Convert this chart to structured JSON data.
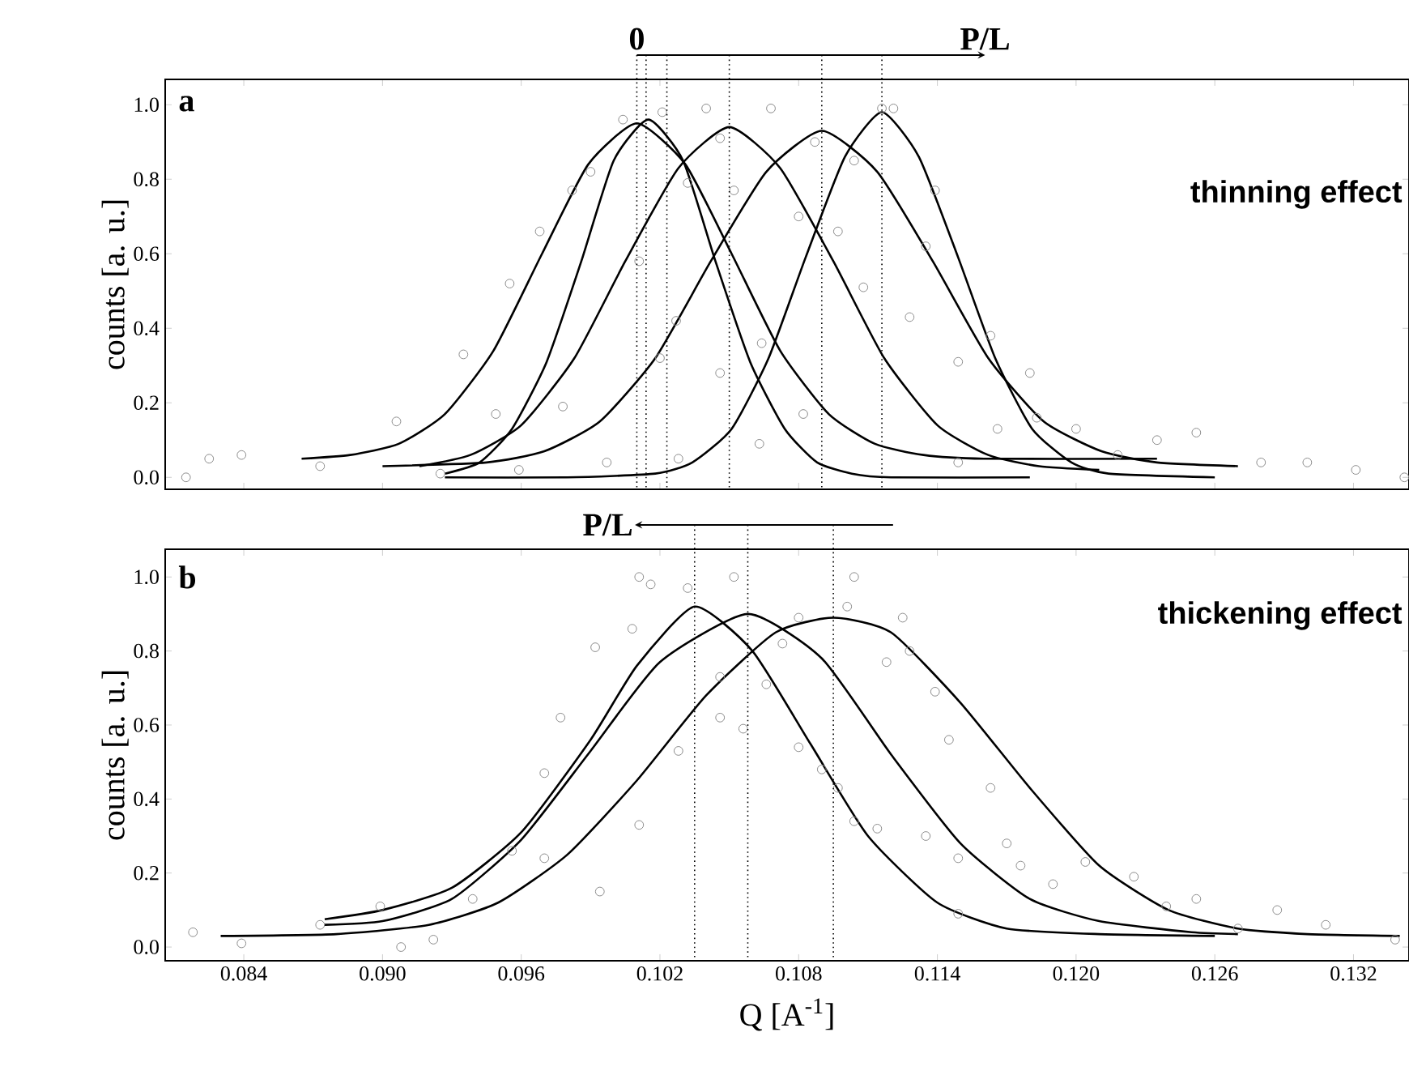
{
  "chart_data": [
    {
      "type": "scatter",
      "ylabel": "counts [a. u.]",
      "xlim": [
        0.0806,
        0.1344
      ],
      "ylim": [
        -0.032,
        1.068
      ],
      "tick_labels": "y",
      "xticks": [
        {
          "value": 0.084,
          "label": null
        },
        {
          "value": 0.09,
          "label": null
        },
        {
          "value": 0.096,
          "label": null
        },
        {
          "value": 0.102,
          "label": null
        },
        {
          "value": 0.108,
          "label": null
        },
        {
          "value": 0.114,
          "label": null
        },
        {
          "value": 0.12,
          "label": null
        },
        {
          "value": 0.126,
          "label": null
        },
        {
          "value": 0.132,
          "label": null
        }
      ],
      "yticks": [
        {
          "value": 0,
          "label": "0.0"
        },
        {
          "value": 0.2,
          "label": "0.2"
        },
        {
          "value": 0.4,
          "label": "0.4"
        },
        {
          "value": 0.6,
          "label": "0.6"
        },
        {
          "value": 0.8,
          "label": "0.8"
        },
        {
          "value": 1,
          "label": "1.0"
        }
      ],
      "annotations": [
        "a",
        "thinning effect",
        "0",
        "P/L"
      ],
      "ref_lines": [
        {
          "axis": "x",
          "value": 0.101,
          "line_style": "dotted"
        },
        {
          "axis": "x",
          "value": 0.1014,
          "line_style": "dotted"
        },
        {
          "axis": "x",
          "value": 0.1023,
          "line_style": "dotted"
        },
        {
          "axis": "x",
          "value": 0.105,
          "line_style": "dotted"
        },
        {
          "axis": "x",
          "value": 0.109,
          "line_style": "dotted"
        },
        {
          "axis": "x",
          "value": 0.1116,
          "line_style": "dotted"
        }
      ],
      "series": [
        {
          "marker": "circle",
          "color": "#8c8c8c",
          "x": [
            0.0815,
            0.0825,
            0.0839,
            0.0873,
            0.0906,
            0.0925,
            0.0935,
            0.0949,
            0.0955,
            0.0959,
            0.0968,
            0.0978,
            0.0982,
            0.099,
            0.0997,
            0.1004,
            0.1011,
            0.102,
            0.1021,
            0.1027,
            0.1028,
            0.1032,
            0.104,
            0.1046,
            0.1046,
            0.1052,
            0.1063,
            0.1064,
            0.1068,
            0.108,
            0.1082,
            0.1087,
            0.1097,
            0.1104,
            0.1108,
            0.1116,
            0.1121,
            0.1128,
            0.1135,
            0.1139,
            0.1149,
            0.1149,
            0.1163,
            0.1166,
            0.118,
            0.1183,
            0.12,
            0.1218,
            0.1235,
            0.1252,
            0.128,
            0.13,
            0.1321,
            0.1342
          ],
          "values": [
            0.0,
            0.05,
            0.06,
            0.03,
            0.15,
            0.01,
            0.33,
            0.17,
            0.52,
            0.02,
            0.66,
            0.19,
            0.77,
            0.82,
            0.04,
            0.96,
            0.58,
            0.32,
            0.98,
            0.42,
            0.05,
            0.79,
            0.99,
            0.91,
            0.28,
            0.77,
            0.09,
            0.36,
            0.99,
            0.7,
            0.17,
            0.9,
            0.66,
            0.85,
            0.51,
            0.99,
            0.99,
            0.43,
            0.62,
            0.77,
            0.31,
            0.04,
            0.38,
            0.13,
            0.28,
            0.16,
            0.13,
            0.06,
            0.1,
            0.12,
            0.04,
            0.04,
            0.02,
            0.0
          ]
        },
        {
          "type": "line",
          "color": "#000000",
          "x": [
            0.0865,
            0.0886,
            0.0907,
            0.0927,
            0.0948,
            0.0969,
            0.0989,
            0.101,
            0.1031,
            0.1051,
            0.1072,
            0.1093,
            0.1113,
            0.1134,
            0.116,
            0.1235
          ],
          "values": [
            0.05,
            0.06,
            0.09,
            0.17,
            0.34,
            0.6,
            0.84,
            0.95,
            0.84,
            0.6,
            0.34,
            0.17,
            0.09,
            0.06,
            0.05,
            0.05
          ]
        },
        {
          "type": "line",
          "color": "#000000",
          "x": [
            0.0927,
            0.0942,
            0.0956,
            0.0971,
            0.0986,
            0.1,
            0.1015,
            0.103,
            0.1044,
            0.1059,
            0.1074,
            0.1088,
            0.1103,
            0.112,
            0.118
          ],
          "values": [
            0.01,
            0.04,
            0.13,
            0.31,
            0.58,
            0.85,
            0.96,
            0.85,
            0.58,
            0.31,
            0.13,
            0.04,
            0.01,
            0.0,
            0.0
          ]
        },
        {
          "type": "line",
          "color": "#000000",
          "x": [
            0.0916,
            0.0938,
            0.096,
            0.0983,
            0.1005,
            0.1028,
            0.105,
            0.1072,
            0.1095,
            0.1117,
            0.114,
            0.1162,
            0.1184,
            0.121
          ],
          "values": [
            0.03,
            0.06,
            0.14,
            0.32,
            0.58,
            0.83,
            0.94,
            0.83,
            0.58,
            0.32,
            0.14,
            0.06,
            0.03,
            0.02
          ]
        },
        {
          "type": "line",
          "color": "#000000",
          "x": [
            0.09,
            0.0945,
            0.097,
            0.0994,
            0.1018,
            0.1042,
            0.1066,
            0.109,
            0.1114,
            0.1138,
            0.1162,
            0.1186,
            0.1211,
            0.1235,
            0.127
          ],
          "values": [
            0.03,
            0.04,
            0.07,
            0.15,
            0.32,
            0.58,
            0.82,
            0.93,
            0.82,
            0.58,
            0.32,
            0.15,
            0.07,
            0.04,
            0.03
          ]
        },
        {
          "type": "line",
          "color": "#000000",
          "x": [
            0.0927,
            0.098,
            0.1018,
            0.1034,
            0.1051,
            0.1067,
            0.1083,
            0.11,
            0.1116,
            0.1132,
            0.1149,
            0.1165,
            0.1181,
            0.1198,
            0.1214,
            0.126
          ],
          "values": [
            0.0,
            0.0,
            0.01,
            0.04,
            0.13,
            0.32,
            0.59,
            0.86,
            0.98,
            0.86,
            0.59,
            0.32,
            0.13,
            0.04,
            0.01,
            0.0
          ]
        }
      ]
    },
    {
      "type": "scatter",
      "ylabel": "counts [a. u.]",
      "xlabel": "Q [A$^{-1}$]",
      "xlim": [
        0.0806,
        0.1344
      ],
      "ylim": [
        -0.037,
        1.075
      ],
      "xticks": [
        0.084,
        {
          "value": 0.09,
          "label": "0.090"
        },
        0.096,
        {
          "value": 0.102,
          "label": "0.102"
        },
        0.108,
        0.114,
        {
          "value": 0.12,
          "label": "0.120"
        },
        0.126,
        0.132
      ],
      "yticks": [
        {
          "value": 0,
          "label": "0.0"
        },
        {
          "value": 0.2,
          "label": "0.2"
        },
        {
          "value": 0.4,
          "label": "0.4"
        },
        {
          "value": 0.6,
          "label": "0.6"
        },
        {
          "value": 0.8,
          "label": "0.8"
        },
        {
          "value": 1,
          "label": "1.0"
        }
      ],
      "annotations": [
        "b",
        "thickening effect",
        "P/L"
      ],
      "ref_lines": [
        {
          "axis": "x",
          "value": 0.1035,
          "line_style": "dotted"
        },
        {
          "axis": "x",
          "value": 0.1058,
          "line_style": "dotted"
        },
        {
          "axis": "x",
          "value": 0.1095,
          "line_style": "dotted"
        }
      ],
      "series": [
        {
          "marker": "circle",
          "color": "#8c8c8c",
          "x": [
            0.0818,
            0.0839,
            0.0873,
            0.0899,
            0.0908,
            0.0922,
            0.0939,
            0.0956,
            0.097,
            0.097,
            0.0977,
            0.0992,
            0.0994,
            0.1008,
            0.1011,
            0.1011,
            0.1016,
            0.1028,
            0.1032,
            0.1046,
            0.1046,
            0.1052,
            0.1056,
            0.1066,
            0.1073,
            0.108,
            0.108,
            0.109,
            0.1097,
            0.1101,
            0.1104,
            0.1104,
            0.1114,
            0.1118,
            0.1125,
            0.1128,
            0.1135,
            0.1139,
            0.1145,
            0.1149,
            0.1149,
            0.1163,
            0.117,
            0.1176,
            0.119,
            0.1204,
            0.1225,
            0.1239,
            0.1252,
            0.127,
            0.1287,
            0.1308,
            0.1338
          ],
          "values": [
            0.04,
            0.01,
            0.06,
            0.11,
            0.0,
            0.02,
            0.13,
            0.26,
            0.47,
            0.24,
            0.62,
            0.81,
            0.15,
            0.86,
            1.0,
            0.33,
            0.98,
            0.53,
            0.97,
            0.62,
            0.73,
            1.0,
            0.59,
            0.71,
            0.82,
            0.89,
            0.54,
            0.48,
            0.43,
            0.92,
            1.0,
            0.34,
            0.32,
            0.77,
            0.89,
            0.8,
            0.3,
            0.69,
            0.56,
            0.24,
            0.09,
            0.43,
            0.28,
            0.22,
            0.17,
            0.23,
            0.19,
            0.11,
            0.13,
            0.05,
            0.1,
            0.06,
            0.02
          ]
        },
        {
          "type": "line",
          "color": "#000000",
          "x": [
            0.0875,
            0.09,
            0.093,
            0.096,
            0.099,
            0.101,
            0.1035,
            0.106,
            0.1085,
            0.111,
            0.114,
            0.117,
            0.121,
            0.126
          ],
          "values": [
            0.075,
            0.1,
            0.16,
            0.31,
            0.56,
            0.76,
            0.92,
            0.8,
            0.55,
            0.3,
            0.12,
            0.05,
            0.035,
            0.03
          ]
        },
        {
          "type": "line",
          "color": "#000000",
          "x": [
            0.0875,
            0.09,
            0.093,
            0.096,
            0.099,
            0.102,
            0.1058,
            0.109,
            0.112,
            0.115,
            0.118,
            0.121,
            0.125,
            0.127
          ],
          "values": [
            0.06,
            0.07,
            0.13,
            0.29,
            0.53,
            0.77,
            0.9,
            0.78,
            0.52,
            0.28,
            0.13,
            0.07,
            0.04,
            0.035
          ]
        },
        {
          "type": "line",
          "color": "#000000",
          "x": [
            0.083,
            0.088,
            0.092,
            0.095,
            0.098,
            0.101,
            0.104,
            0.107,
            0.1095,
            0.112,
            0.115,
            0.118,
            0.121,
            0.124,
            0.127,
            0.13,
            0.134
          ],
          "values": [
            0.03,
            0.035,
            0.06,
            0.12,
            0.25,
            0.45,
            0.68,
            0.85,
            0.89,
            0.85,
            0.66,
            0.43,
            0.22,
            0.1,
            0.05,
            0.035,
            0.03
          ]
        }
      ]
    }
  ]
}
